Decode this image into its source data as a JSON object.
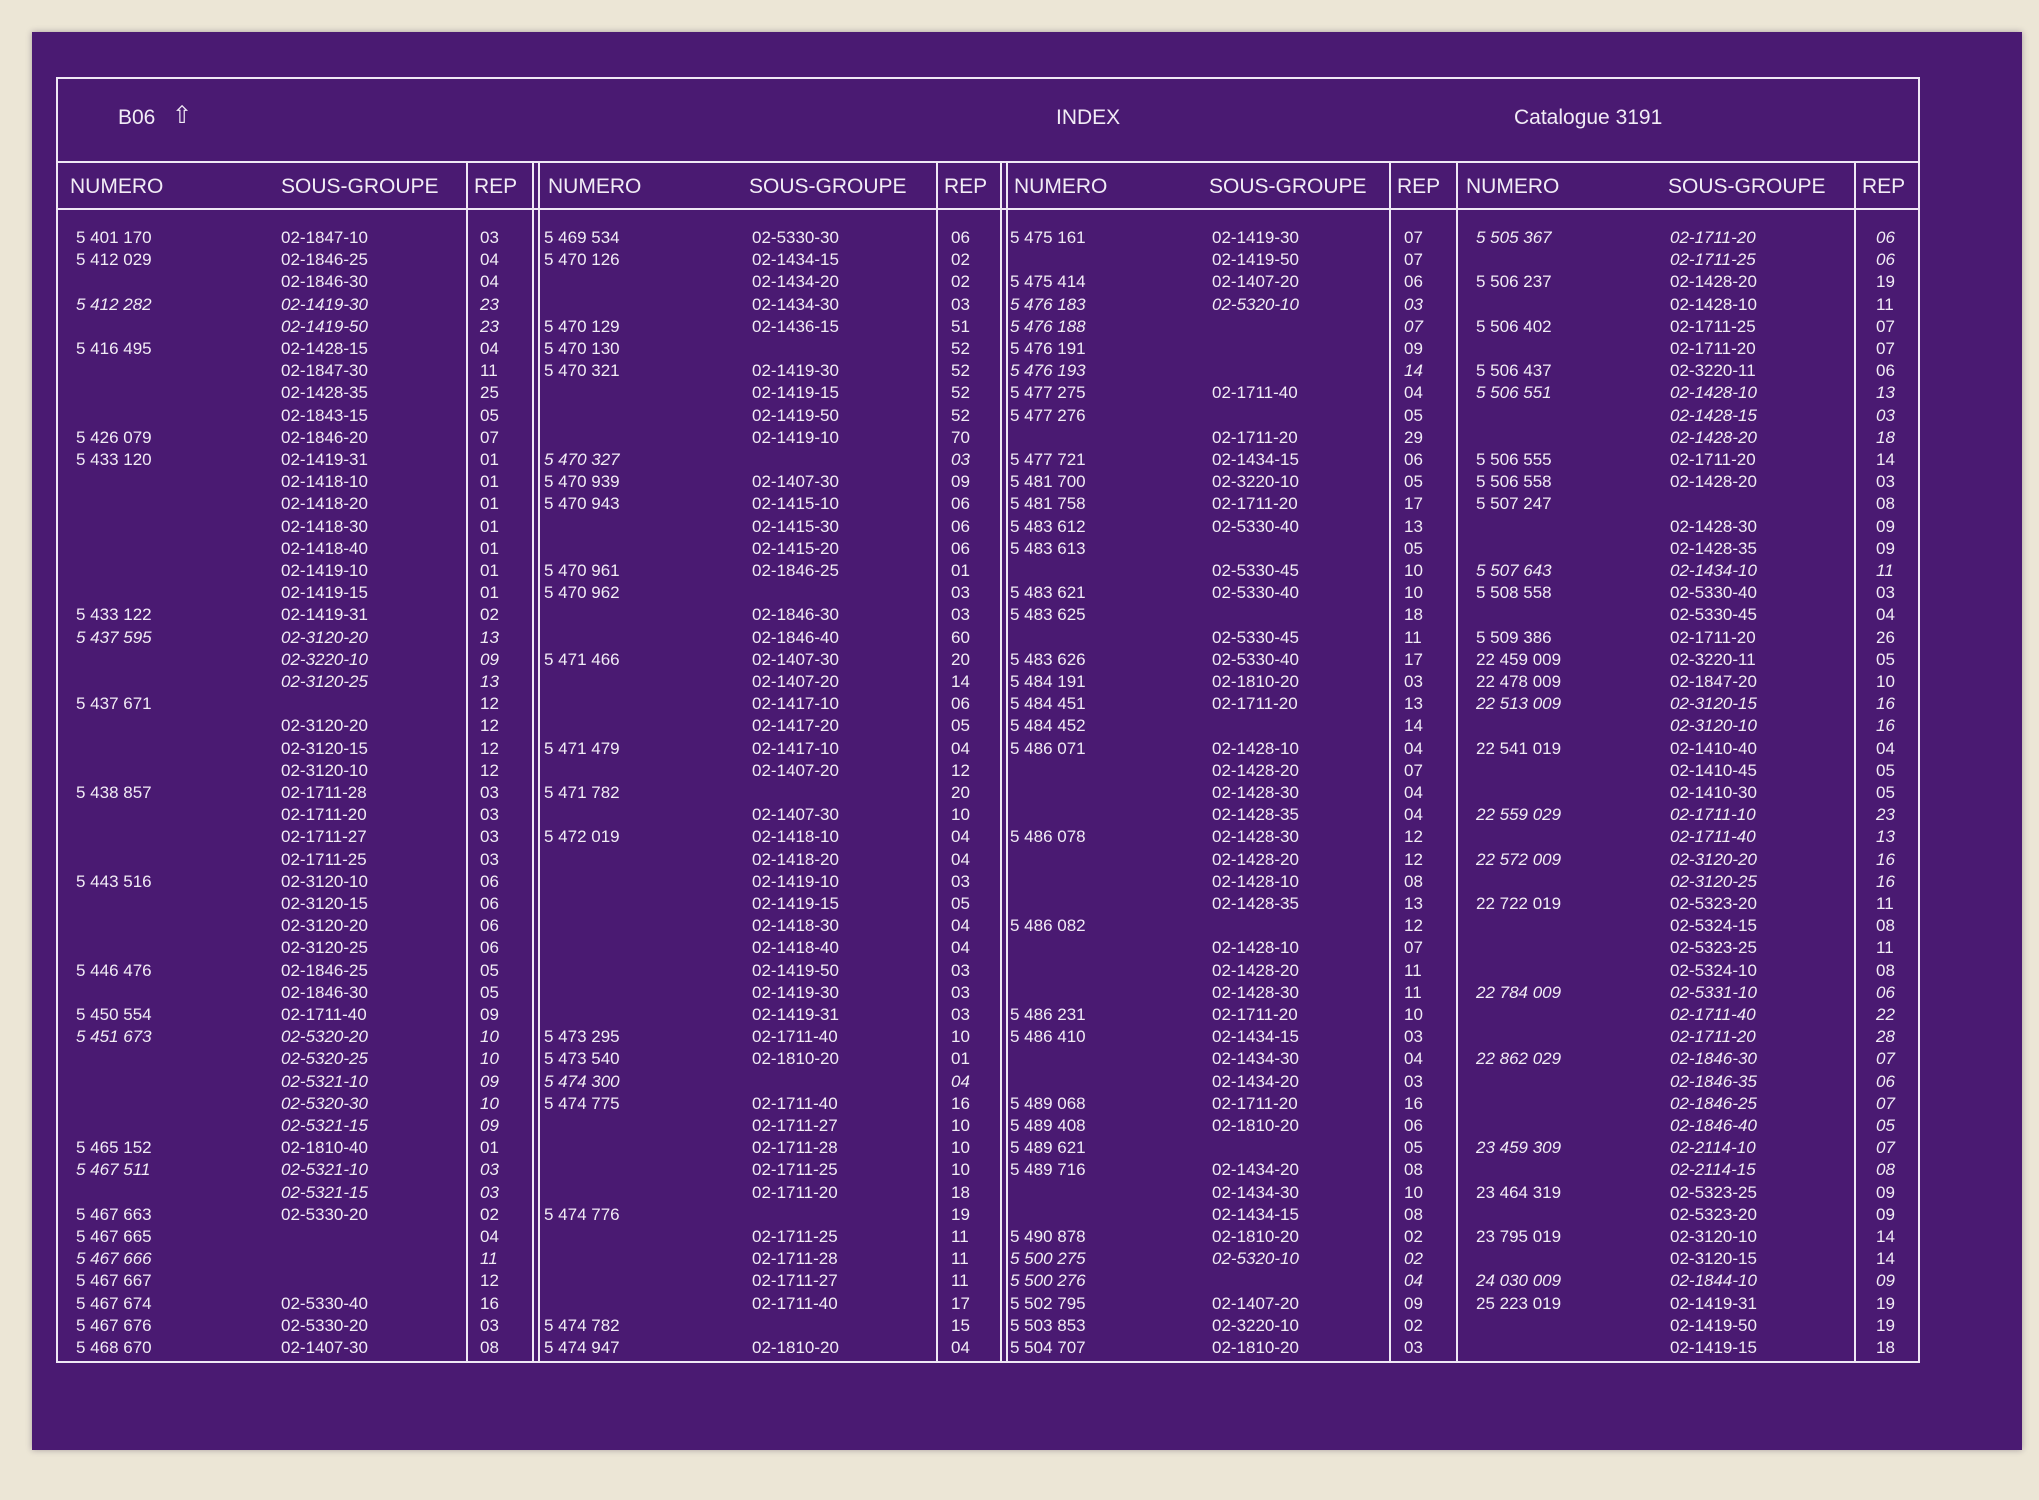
{
  "header": {
    "code": "B06",
    "arrow": "⇧",
    "title": "INDEX",
    "catalogue": "Catalogue  3191"
  },
  "column_labels": {
    "numero": "NUMERO",
    "sous_groupe": "SOUS-GROUPE",
    "rep": "REP"
  },
  "blocks": [
    {
      "rows": [
        [
          "5 401 170",
          "02-1847-10",
          "03",
          0
        ],
        [
          "5 412 029",
          "02-1846-25",
          "04",
          0
        ],
        [
          "",
          "02-1846-30",
          "04",
          0
        ],
        [
          "5 412 282",
          "02-1419-30",
          "23",
          1
        ],
        [
          "",
          "02-1419-50",
          "23",
          1
        ],
        [
          "5 416 495",
          "02-1428-15",
          "04",
          0
        ],
        [
          "",
          "02-1847-30",
          "11",
          0
        ],
        [
          "",
          "02-1428-35",
          "25",
          0
        ],
        [
          "",
          "02-1843-15",
          "05",
          0
        ],
        [
          "5 426 079",
          "02-1846-20",
          "07",
          0
        ],
        [
          "5 433 120",
          "02-1419-31",
          "01",
          0
        ],
        [
          "",
          "02-1418-10",
          "01",
          0
        ],
        [
          "",
          "02-1418-20",
          "01",
          0
        ],
        [
          "",
          "02-1418-30",
          "01",
          0
        ],
        [
          "",
          "02-1418-40",
          "01",
          0
        ],
        [
          "",
          "02-1419-10",
          "01",
          0
        ],
        [
          "",
          "02-1419-15",
          "01",
          0
        ],
        [
          "5 433 122",
          "02-1419-31",
          "02",
          0
        ],
        [
          "5 437 595",
          "02-3120-20",
          "13",
          1
        ],
        [
          "",
          "02-3220-10",
          "09",
          1
        ],
        [
          "",
          "02-3120-25",
          "13",
          1
        ],
        [
          "5 437 671",
          "",
          "12",
          0
        ],
        [
          "",
          "02-3120-20",
          "12",
          0
        ],
        [
          "",
          "02-3120-15",
          "12",
          0
        ],
        [
          "",
          "02-3120-10",
          "12",
          0
        ],
        [
          "5 438 857",
          "02-1711-28",
          "03",
          0
        ],
        [
          "",
          "02-1711-20",
          "03",
          0
        ],
        [
          "",
          "02-1711-27",
          "03",
          0
        ],
        [
          "",
          "02-1711-25",
          "03",
          0
        ],
        [
          "5 443 516",
          "02-3120-10",
          "06",
          0
        ],
        [
          "",
          "02-3120-15",
          "06",
          0
        ],
        [
          "",
          "02-3120-20",
          "06",
          0
        ],
        [
          "",
          "02-3120-25",
          "06",
          0
        ],
        [
          "5 446 476",
          "02-1846-25",
          "05",
          0
        ],
        [
          "",
          "02-1846-30",
          "05",
          0
        ],
        [
          "5 450 554",
          "02-1711-40",
          "09",
          0
        ],
        [
          "5 451 673",
          "02-5320-20",
          "10",
          1
        ],
        [
          "",
          "02-5320-25",
          "10",
          1
        ],
        [
          "",
          "02-5321-10",
          "09",
          1
        ],
        [
          "",
          "02-5320-30",
          "10",
          1
        ],
        [
          "",
          "02-5321-15",
          "09",
          1
        ],
        [
          "5 465 152",
          "02-1810-40",
          "01",
          0
        ],
        [
          "5 467 511",
          "02-5321-10",
          "03",
          1
        ],
        [
          "",
          "02-5321-15",
          "03",
          1
        ],
        [
          "5 467 663",
          "02-5330-20",
          "02",
          0
        ],
        [
          "5 467 665",
          "",
          "04",
          0
        ],
        [
          "5 467 666",
          "",
          "11",
          1
        ],
        [
          "5 467 667",
          "",
          "12",
          0
        ],
        [
          "5 467 674",
          "02-5330-40",
          "16",
          0
        ],
        [
          "5 467 676",
          "02-5330-20",
          "03",
          0
        ],
        [
          "5 468 670",
          "02-1407-30",
          "08",
          0
        ]
      ]
    },
    {
      "rows": [
        [
          "5 469 534",
          "02-5330-30",
          "06",
          0
        ],
        [
          "5 470 126",
          "02-1434-15",
          "02",
          0
        ],
        [
          "",
          "02-1434-20",
          "02",
          0
        ],
        [
          "",
          "02-1434-30",
          "03",
          0
        ],
        [
          "5 470 129",
          "02-1436-15",
          "51",
          0
        ],
        [
          "5 470 130",
          "",
          "52",
          0
        ],
        [
          "5 470 321",
          "02-1419-30",
          "52",
          0
        ],
        [
          "",
          "02-1419-15",
          "52",
          0
        ],
        [
          "",
          "02-1419-50",
          "52",
          0
        ],
        [
          "",
          "02-1419-10",
          "70",
          0
        ],
        [
          "5 470 327",
          "",
          "03",
          1
        ],
        [
          "5 470 939",
          "02-1407-30",
          "09",
          0
        ],
        [
          "5 470 943",
          "02-1415-10",
          "06",
          0
        ],
        [
          "",
          "02-1415-30",
          "06",
          0
        ],
        [
          "",
          "02-1415-20",
          "06",
          0
        ],
        [
          "5 470 961",
          "02-1846-25",
          "01",
          0
        ],
        [
          "5 470 962",
          "",
          "03",
          0
        ],
        [
          "",
          "02-1846-30",
          "03",
          0
        ],
        [
          "",
          "02-1846-40",
          "60",
          0
        ],
        [
          "5 471 466",
          "02-1407-30",
          "20",
          0
        ],
        [
          "",
          "02-1407-20",
          "14",
          0
        ],
        [
          "",
          "02-1417-10",
          "06",
          0
        ],
        [
          "",
          "02-1417-20",
          "05",
          0
        ],
        [
          "5 471 479",
          "02-1417-10",
          "04",
          0
        ],
        [
          "",
          "02-1407-20",
          "12",
          0
        ],
        [
          "5 471 782",
          "",
          "20",
          0
        ],
        [
          "",
          "02-1407-30",
          "10",
          0
        ],
        [
          "5 472 019",
          "02-1418-10",
          "04",
          0
        ],
        [
          "",
          "02-1418-20",
          "04",
          0
        ],
        [
          "",
          "02-1419-10",
          "03",
          0
        ],
        [
          "",
          "02-1419-15",
          "05",
          0
        ],
        [
          "",
          "02-1418-30",
          "04",
          0
        ],
        [
          "",
          "02-1418-40",
          "04",
          0
        ],
        [
          "",
          "02-1419-50",
          "03",
          0
        ],
        [
          "",
          "02-1419-30",
          "03",
          0
        ],
        [
          "",
          "02-1419-31",
          "03",
          0
        ],
        [
          "5 473 295",
          "02-1711-40",
          "10",
          0
        ],
        [
          "5 473 540",
          "02-1810-20",
          "01",
          0
        ],
        [
          "5 474 300",
          "",
          "04",
          1
        ],
        [
          "5 474 775",
          "02-1711-40",
          "16",
          0
        ],
        [
          "",
          "02-1711-27",
          "10",
          0
        ],
        [
          "",
          "02-1711-28",
          "10",
          0
        ],
        [
          "",
          "02-1711-25",
          "10",
          0
        ],
        [
          "",
          "02-1711-20",
          "18",
          0
        ],
        [
          "5 474 776",
          "",
          "19",
          0
        ],
        [
          "",
          "02-1711-25",
          "11",
          0
        ],
        [
          "",
          "02-1711-28",
          "11",
          0
        ],
        [
          "",
          "02-1711-27",
          "11",
          0
        ],
        [
          "",
          "02-1711-40",
          "17",
          0
        ],
        [
          "5 474 782",
          "",
          "15",
          0
        ],
        [
          "5 474 947",
          "02-1810-20",
          "04",
          0
        ]
      ]
    },
    {
      "rows": [
        [
          "5 475 161",
          "02-1419-30",
          "07",
          0
        ],
        [
          "",
          "02-1419-50",
          "07",
          0
        ],
        [
          "5 475 414",
          "02-1407-20",
          "06",
          0
        ],
        [
          "5 476 183",
          "02-5320-10",
          "03",
          1
        ],
        [
          "5 476 188",
          "",
          "07",
          1
        ],
        [
          "5 476 191",
          "",
          "09",
          0
        ],
        [
          "5 476 193",
          "",
          "14",
          1
        ],
        [
          "5 477 275",
          "02-1711-40",
          "04",
          0
        ],
        [
          "5 477 276",
          "",
          "05",
          0
        ],
        [
          "",
          "02-1711-20",
          "29",
          0
        ],
        [
          "5 477 721",
          "02-1434-15",
          "06",
          0
        ],
        [
          "5 481 700",
          "02-3220-10",
          "05",
          0
        ],
        [
          "5 481 758",
          "02-1711-20",
          "17",
          0
        ],
        [
          "5 483 612",
          "02-5330-40",
          "13",
          0
        ],
        [
          "5 483 613",
          "",
          "05",
          0
        ],
        [
          "",
          "02-5330-45",
          "10",
          0
        ],
        [
          "5 483 621",
          "02-5330-40",
          "10",
          0
        ],
        [
          "5 483 625",
          "",
          "18",
          0
        ],
        [
          "",
          "02-5330-45",
          "11",
          0
        ],
        [
          "5 483 626",
          "02-5330-40",
          "17",
          0
        ],
        [
          "5 484 191",
          "02-1810-20",
          "03",
          0
        ],
        [
          "5 484 451",
          "02-1711-20",
          "13",
          0
        ],
        [
          "5 484 452",
          "",
          "14",
          0
        ],
        [
          "5 486 071",
          "02-1428-10",
          "04",
          0
        ],
        [
          "",
          "02-1428-20",
          "07",
          0
        ],
        [
          "",
          "02-1428-30",
          "04",
          0
        ],
        [
          "",
          "02-1428-35",
          "04",
          0
        ],
        [
          "5 486 078",
          "02-1428-30",
          "12",
          0
        ],
        [
          "",
          "02-1428-20",
          "12",
          0
        ],
        [
          "",
          "02-1428-10",
          "08",
          0
        ],
        [
          "",
          "02-1428-35",
          "13",
          0
        ],
        [
          "5 486 082",
          "",
          "12",
          0
        ],
        [
          "",
          "02-1428-10",
          "07",
          0
        ],
        [
          "",
          "02-1428-20",
          "11",
          0
        ],
        [
          "",
          "02-1428-30",
          "11",
          0
        ],
        [
          "5 486 231",
          "02-1711-20",
          "10",
          0
        ],
        [
          "5 486 410",
          "02-1434-15",
          "03",
          0
        ],
        [
          "",
          "02-1434-30",
          "04",
          0
        ],
        [
          "",
          "02-1434-20",
          "03",
          0
        ],
        [
          "5 489 068",
          "02-1711-20",
          "16",
          0
        ],
        [
          "5 489 408",
          "02-1810-20",
          "06",
          0
        ],
        [
          "5 489 621",
          "",
          "05",
          0
        ],
        [
          "5 489 716",
          "02-1434-20",
          "08",
          0
        ],
        [
          "",
          "02-1434-30",
          "10",
          0
        ],
        [
          "",
          "02-1434-15",
          "08",
          0
        ],
        [
          "5 490 878",
          "02-1810-20",
          "02",
          0
        ],
        [
          "5 500 275",
          "02-5320-10",
          "02",
          1
        ],
        [
          "5 500 276",
          "",
          "04",
          1
        ],
        [
          "5 502 795",
          "02-1407-20",
          "09",
          0
        ],
        [
          "5 503 853",
          "02-3220-10",
          "02",
          0
        ],
        [
          "5 504 707",
          "02-1810-20",
          "03",
          0
        ]
      ]
    },
    {
      "rows": [
        [
          "5 505 367",
          "02-1711-20",
          "06",
          1
        ],
        [
          "",
          "02-1711-25",
          "06",
          1
        ],
        [
          "5 506 237",
          "02-1428-20",
          "19",
          0
        ],
        [
          "",
          "02-1428-10",
          "11",
          0
        ],
        [
          "5 506 402",
          "02-1711-25",
          "07",
          0
        ],
        [
          "",
          "02-1711-20",
          "07",
          0
        ],
        [
          "5 506 437",
          "02-3220-11",
          "06",
          0
        ],
        [
          "5 506 551",
          "02-1428-10",
          "13",
          1
        ],
        [
          "",
          "02-1428-15",
          "03",
          1
        ],
        [
          "",
          "02-1428-20",
          "18",
          1
        ],
        [
          "5 506 555",
          "02-1711-20",
          "14",
          0
        ],
        [
          "5 506 558",
          "02-1428-20",
          "03",
          0
        ],
        [
          "5 507 247",
          "",
          "08",
          0
        ],
        [
          "",
          "02-1428-30",
          "09",
          0
        ],
        [
          "",
          "02-1428-35",
          "09",
          0
        ],
        [
          "5 507 643",
          "02-1434-10",
          "11",
          1
        ],
        [
          "5 508 558",
          "02-5330-40",
          "03",
          0
        ],
        [
          "",
          "02-5330-45",
          "04",
          0
        ],
        [
          "5 509 386",
          "02-1711-20",
          "26",
          0
        ],
        [
          "22 459 009",
          "02-3220-11",
          "05",
          0
        ],
        [
          "22 478 009",
          "02-1847-20",
          "10",
          0
        ],
        [
          "22 513 009",
          "02-3120-15",
          "16",
          1
        ],
        [
          "",
          "02-3120-10",
          "16",
          1
        ],
        [
          "22 541 019",
          "02-1410-40",
          "04",
          0
        ],
        [
          "",
          "02-1410-45",
          "05",
          0
        ],
        [
          "",
          "02-1410-30",
          "05",
          0
        ],
        [
          "22 559 029",
          "02-1711-10",
          "23",
          1
        ],
        [
          "",
          "02-1711-40",
          "13",
          1
        ],
        [
          "22 572 009",
          "02-3120-20",
          "16",
          1
        ],
        [
          "",
          "02-3120-25",
          "16",
          1
        ],
        [
          "22 722 019",
          "02-5323-20",
          "11",
          0
        ],
        [
          "",
          "02-5324-15",
          "08",
          0
        ],
        [
          "",
          "02-5323-25",
          "11",
          0
        ],
        [
          "",
          "02-5324-10",
          "08",
          0
        ],
        [
          "22 784 009",
          "02-5331-10",
          "06",
          1
        ],
        [
          "",
          "02-1711-40",
          "22",
          1
        ],
        [
          "",
          "02-1711-20",
          "28",
          1
        ],
        [
          "22 862 029",
          "02-1846-30",
          "07",
          1
        ],
        [
          "",
          "02-1846-35",
          "06",
          1
        ],
        [
          "",
          "02-1846-25",
          "07",
          1
        ],
        [
          "",
          "02-1846-40",
          "05",
          1
        ],
        [
          "23 459 309",
          "02-2114-10",
          "07",
          1
        ],
        [
          "",
          "02-2114-15",
          "08",
          1
        ],
        [
          "23 464 319",
          "02-5323-25",
          "09",
          0
        ],
        [
          "",
          "02-5323-20",
          "09",
          0
        ],
        [
          "23 795 019",
          "02-3120-10",
          "14",
          0
        ],
        [
          "",
          "02-3120-15",
          "14",
          0
        ],
        [
          "24 030 009",
          "02-1844-10",
          "09",
          1
        ],
        [
          "25 223 019",
          "02-1419-31",
          "19",
          0
        ],
        [
          "",
          "02-1419-50",
          "19",
          0
        ],
        [
          "",
          "02-1419-15",
          "18",
          0
        ]
      ]
    }
  ]
}
